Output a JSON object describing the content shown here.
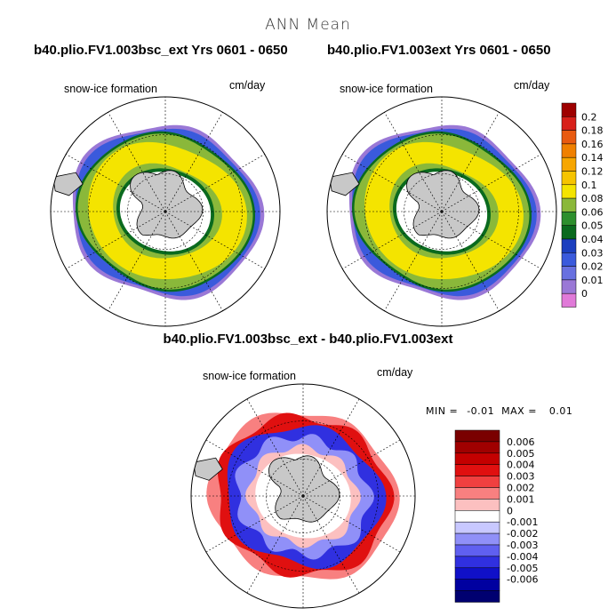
{
  "page": {
    "title": "ANN Mean",
    "panel_top_left_title": "b40.plio.FV1.003bsc_ext  Yrs 0601 - 0650",
    "panel_top_right_title": "b40.plio.FV1.003ext  Yrs 0601 - 0650",
    "panel_bottom_title": "b40.plio.FV1.003bsc_ext - b40.plio.FV1.003ext",
    "variable_label": "snow-ice formation",
    "units": "cm/day",
    "min_label": "MIN =",
    "min_value": "-0.01",
    "max_label": "MAX =",
    "max_value": "0.01"
  },
  "chart_data": [
    {
      "type": "heatmap",
      "projection": "south-polar-stereographic",
      "title": "b40.plio.FV1.003bsc_ext  Yrs 0601 - 0650",
      "variable": "snow-ice formation",
      "units": "cm/day",
      "legend": {
        "levels": [
          "0",
          "0.01",
          "0.02",
          "0.03",
          "0.04",
          "0.05",
          "0.06",
          "0.08",
          "0.1",
          "0.12",
          "0.14",
          "0.16",
          "0.18",
          "0.2"
        ],
        "colors": [
          "#e07ad8",
          "#9a78d6",
          "#6870e0",
          "#3a5adc",
          "#1b3fbf",
          "#0a6a1e",
          "#2d8f2d",
          "#8ab83a",
          "#f4e400",
          "#f6c400",
          "#f7a600",
          "#f08000",
          "#e85a10",
          "#d8201a",
          "#9e0000"
        ]
      }
    },
    {
      "type": "heatmap",
      "projection": "south-polar-stereographic",
      "title": "b40.plio.FV1.003ext  Yrs 0601 - 0650",
      "variable": "snow-ice formation",
      "units": "cm/day",
      "legend": "shared with panel 1"
    },
    {
      "type": "heatmap",
      "projection": "south-polar-stereographic",
      "title": "b40.plio.FV1.003bsc_ext - b40.plio.FV1.003ext",
      "variable": "snow-ice formation",
      "units": "cm/day",
      "min": -0.01,
      "max": 0.01,
      "legend": {
        "levels": [
          "0.006",
          "0.005",
          "0.004",
          "0.003",
          "0.002",
          "0.001",
          "0",
          "-0.001",
          "-0.002",
          "-0.003",
          "-0.004",
          "-0.005",
          "-0.006"
        ],
        "colors": [
          "#7a0000",
          "#a00000",
          "#c40000",
          "#e01010",
          "#f04040",
          "#f88080",
          "#fcc0c0",
          "#ffffff",
          "#c8c8ff",
          "#9090f8",
          "#6060f0",
          "#3030e0",
          "#1010c8",
          "#0000a0",
          "#000070"
        ]
      }
    }
  ]
}
